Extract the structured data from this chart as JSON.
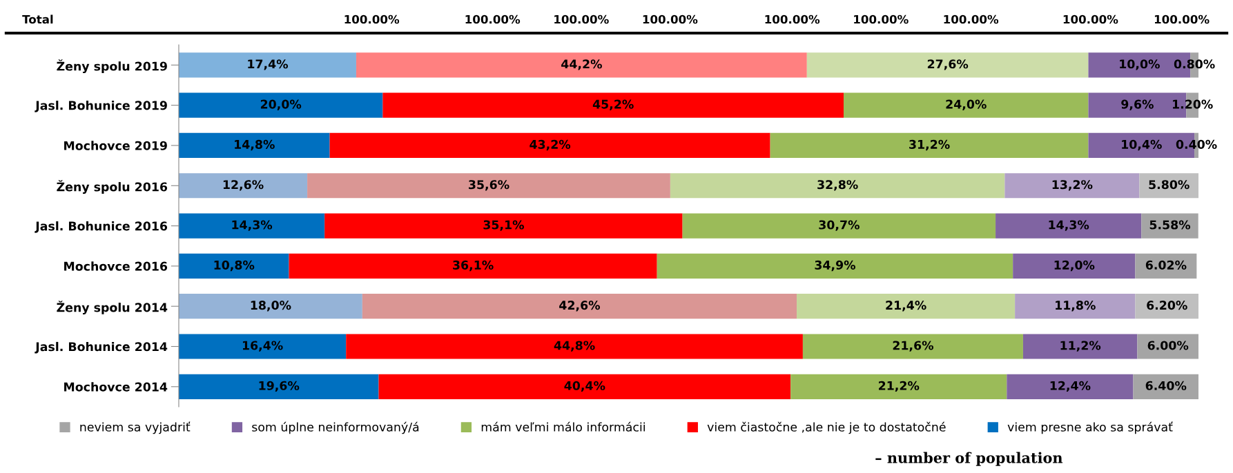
{
  "chart_data": {
    "type": "bar",
    "orientation": "horizontal",
    "stacked": true,
    "legend": "bottom",
    "grid": false,
    "tick_labels": "y",
    "xlim": [
      0,
      100
    ],
    "categories": [
      "Ženy spolu 2019",
      "Jasl. Bohunice 2019",
      "Mochovce 2019",
      "Ženy spolu 2016",
      "Jasl. Bohunice 2016",
      "Mochovce 2016",
      "Ženy spolu 2014",
      "Jasl. Bohunice 2014",
      "Mochovce 2014"
    ],
    "series": [
      {
        "name": "viem presne ako sa správať",
        "color": "#0070c0",
        "colors": [
          "#7fb2dd",
          "#0070c0",
          "#0070c0",
          "#95b3d7",
          "#0070c0",
          "#0070c0",
          "#95b3d7",
          "#0070c0",
          "#0070c0"
        ],
        "values": [
          17.4,
          20.0,
          14.8,
          12.6,
          14.3,
          10.8,
          18.0,
          16.4,
          19.6
        ],
        "value_labels": [
          "17,4%",
          "20,0%",
          "14,8%",
          "12,6%",
          "14,3%",
          "10,8%",
          "18,0%",
          "16,4%",
          "19,6%"
        ]
      },
      {
        "name": "viem čiastočne ,ale nie je to dostatočné",
        "color": "#ff0000",
        "colors": [
          "#ff8080",
          "#ff0000",
          "#ff0000",
          "#da9694",
          "#ff0000",
          "#ff0000",
          "#da9694",
          "#ff0000",
          "#ff0000"
        ],
        "values": [
          44.2,
          45.2,
          43.2,
          35.6,
          35.1,
          36.1,
          42.6,
          44.8,
          40.4
        ],
        "value_labels": [
          "44,2%",
          "45,2%",
          "43,2%",
          "35,6%",
          "35,1%",
          "36,1%",
          "42,6%",
          "44,8%",
          "40,4%"
        ]
      },
      {
        "name": "mám veľmi málo informácii",
        "color": "#9bbb59",
        "colors": [
          "#cddda9",
          "#9bbb59",
          "#9bbb59",
          "#c4d79b",
          "#9bbb59",
          "#9bbb59",
          "#c4d79b",
          "#9bbb59",
          "#9bbb59"
        ],
        "values": [
          27.6,
          24.0,
          31.2,
          32.8,
          30.7,
          34.9,
          21.4,
          21.6,
          21.2
        ],
        "value_labels": [
          "27,6%",
          "24,0%",
          "31,2%",
          "32,8%",
          "30,7%",
          "34,9%",
          "21,4%",
          "21,6%",
          "21,2%"
        ]
      },
      {
        "name": "som úplne neinformovaný/á",
        "color": "#8064a2",
        "colors": [
          "#8064a2",
          "#8064a2",
          "#8064a2",
          "#b1a0c7",
          "#8064a2",
          "#8064a2",
          "#b1a0c7",
          "#8064a2",
          "#8064a2"
        ],
        "values": [
          10.0,
          9.6,
          10.4,
          13.2,
          14.3,
          12.0,
          11.8,
          11.2,
          12.4
        ],
        "value_labels": [
          "10,0%",
          "9,6%",
          "10,4%",
          "13,2%",
          "14,3%",
          "12,0%",
          "11,8%",
          "11,2%",
          "12,4%"
        ]
      },
      {
        "name": "neviem sa vyjadriť",
        "color": "#a5a5a5",
        "colors": [
          "#a5a5a5",
          "#a5a5a5",
          "#a5a5a5",
          "#bfbfbf",
          "#a5a5a5",
          "#a5a5a5",
          "#bfbfbf",
          "#a5a5a5",
          "#a5a5a5"
        ],
        "values": [
          0.8,
          1.2,
          0.4,
          5.8,
          5.58,
          6.02,
          6.2,
          6.0,
          6.4
        ],
        "value_labels": [
          "0.80%",
          "1.20%",
          "0.40%",
          "5.80%",
          "5.58%",
          "6.02%",
          "6.20%",
          "6.00%",
          "6.40%"
        ]
      }
    ],
    "annotations": [
      "Total",
      "100.00%",
      "100.00%",
      "100.00%",
      "100.00%",
      "100.00%",
      "100.00%",
      "100.00%",
      "100.00%",
      "100.00%",
      "– number of population"
    ]
  }
}
